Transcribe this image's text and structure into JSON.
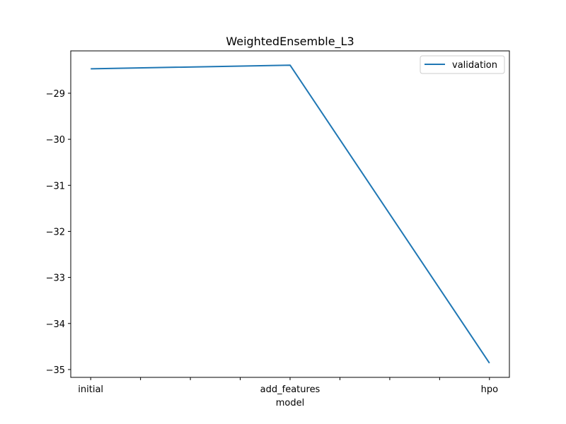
{
  "chart_data": {
    "type": "line",
    "title": "WeightedEnsemble_L3",
    "xlabel": "model",
    "ylabel": "",
    "categories": [
      "initial",
      "add_features",
      "hpo"
    ],
    "series": [
      {
        "name": "validation",
        "color": "#1f77b4",
        "values": [
          -28.47,
          -28.39,
          -34.86
        ]
      }
    ],
    "ylim": [
      -35.17,
      -28.08
    ],
    "yticks": [
      -29,
      -30,
      -31,
      -32,
      -33,
      -34,
      -35
    ],
    "ytick_labels": [
      "−29",
      "−30",
      "−31",
      "−32",
      "−33",
      "−34",
      "−35"
    ],
    "xticks_minor": [
      0.25,
      0.5,
      0.75,
      1.25,
      1.5,
      1.75
    ],
    "xlim": [
      -0.1,
      2.1
    ],
    "legend_position": "upper right",
    "grid": false
  }
}
